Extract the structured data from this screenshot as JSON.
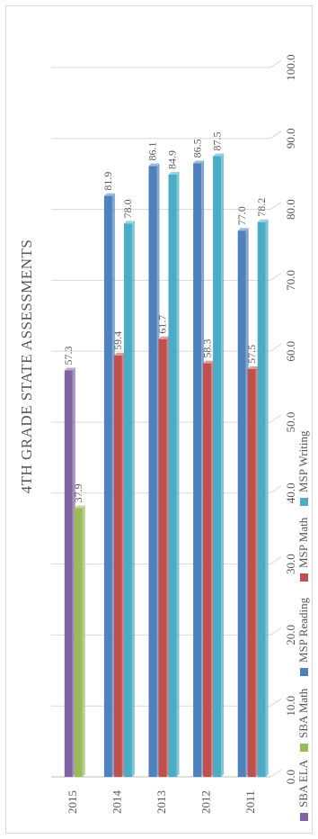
{
  "chart_data": {
    "type": "bar",
    "orientation": "horizontal",
    "title": "4TH GRADE STATE ASSESSMENTS",
    "categories": [
      "2015",
      "2014",
      "2013",
      "2012",
      "2011"
    ],
    "series": [
      {
        "name": "SBA ELA",
        "color": "#8064a2",
        "values": [
          57.3,
          null,
          null,
          null,
          null
        ]
      },
      {
        "name": "SBA Math",
        "color": "#9bbb59",
        "values": [
          37.9,
          null,
          null,
          null,
          null
        ]
      },
      {
        "name": "MSP Reading",
        "color": "#4f81bd",
        "values": [
          null,
          81.9,
          86.1,
          86.5,
          77.0
        ]
      },
      {
        "name": "MSP Math",
        "color": "#c0504d",
        "values": [
          null,
          59.4,
          61.7,
          58.3,
          57.5
        ]
      },
      {
        "name": "MSP Writing",
        "color": "#4bacc6",
        "values": [
          null,
          78.0,
          84.9,
          87.5,
          78.2
        ]
      }
    ],
    "value_axis": {
      "min": 0,
      "max": 100,
      "tick_labels": [
        "0.0",
        "10.0",
        "20.0",
        "30.0",
        "40.0",
        "50.0",
        "60.0",
        "70.0",
        "80.0",
        "90.0",
        "100.0"
      ]
    },
    "grid": true,
    "legend_position": "bottom",
    "data_labels": true
  }
}
